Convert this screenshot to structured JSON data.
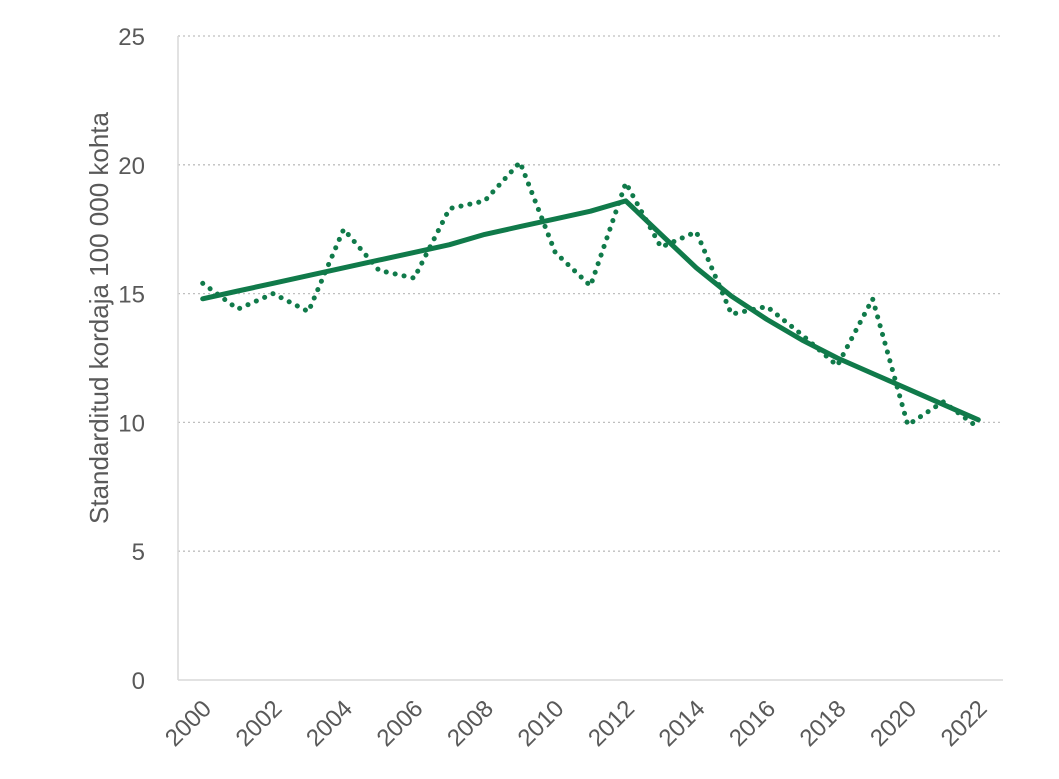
{
  "chart_data": {
    "type": "line",
    "title": "",
    "xlabel": "",
    "ylabel": "Standarditud kordaja 100 000 kohta",
    "x": [
      2000,
      2001,
      2002,
      2003,
      2004,
      2005,
      2006,
      2007,
      2008,
      2009,
      2010,
      2011,
      2012,
      2013,
      2014,
      2015,
      2016,
      2017,
      2018,
      2019,
      2020,
      2021,
      2022
    ],
    "x_ticks": [
      "2000",
      "2002",
      "2004",
      "2006",
      "2008",
      "2010",
      "2012",
      "2014",
      "2016",
      "2018",
      "2020",
      "2022"
    ],
    "y_ticks": [
      "0",
      "5",
      "10",
      "15",
      "20",
      "25"
    ],
    "ylim": [
      0,
      25
    ],
    "xlim": [
      1999.3,
      2022.7
    ],
    "grid": {
      "horizontal": true,
      "style": "dotted"
    },
    "legend": "none",
    "series": [
      {
        "style": "dotted",
        "color": "#107a4a",
        "values": [
          15.4,
          14.4,
          15.0,
          14.3,
          17.5,
          15.9,
          15.6,
          18.3,
          18.6,
          20.1,
          16.6,
          15.3,
          19.3,
          16.8,
          17.4,
          14.2,
          14.5,
          13.4,
          12.2,
          14.8,
          9.9,
          10.8,
          9.8
        ]
      },
      {
        "style": "solid",
        "color": "#107a4a",
        "values": [
          14.8,
          15.1,
          15.4,
          15.7,
          16.0,
          16.3,
          16.6,
          16.9,
          17.3,
          17.6,
          17.9,
          18.2,
          18.6,
          17.3,
          16.0,
          14.9,
          14.0,
          13.2,
          12.5,
          11.9,
          11.3,
          10.7,
          10.1
        ]
      }
    ]
  }
}
